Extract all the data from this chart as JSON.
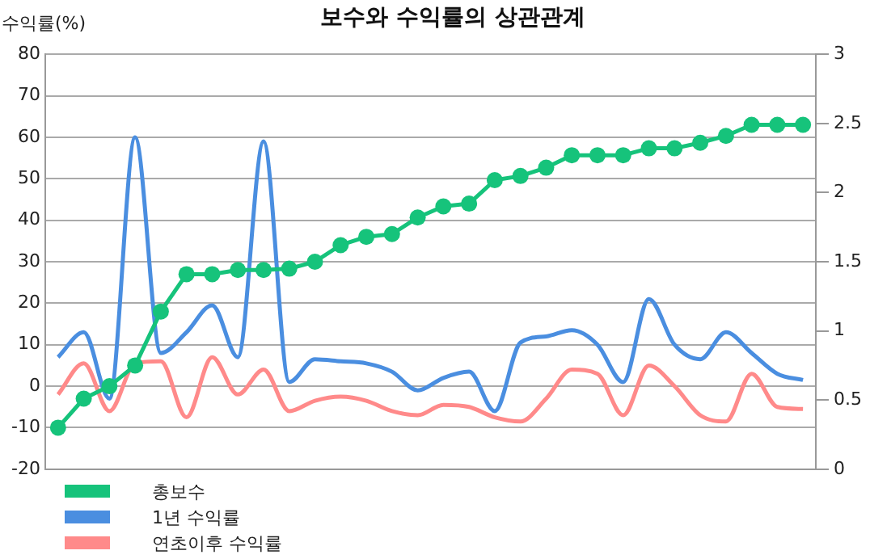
{
  "chart_data": {
    "type": "line",
    "title": "보수와 수익률의 상관관계",
    "ylabel": "수익률(%)",
    "categories": [
      null,
      null,
      null,
      null,
      null,
      null,
      null,
      null,
      null,
      null,
      null,
      null,
      null,
      null,
      null,
      null,
      null,
      null,
      null,
      null,
      null,
      null,
      null,
      null,
      null,
      null,
      null,
      null,
      null,
      null
    ],
    "series": [
      {
        "name": "총보수",
        "color": "#16c37b",
        "axis": "y2",
        "marker": "circle",
        "values": [
          0.3,
          0.51,
          0.6,
          0.75,
          1.14,
          1.41,
          1.41,
          1.44,
          1.44,
          1.45,
          1.5,
          1.62,
          1.68,
          1.7,
          1.82,
          1.9,
          1.92,
          2.09,
          2.12,
          2.18,
          2.27,
          2.27,
          2.27,
          2.32,
          2.32,
          2.36,
          2.41,
          2.49,
          2.49,
          2.49
        ]
      },
      {
        "name": "1년 수익률",
        "color": "#4a8ee0",
        "marker": "none",
        "values": [
          7,
          13,
          -3,
          60,
          8,
          13,
          19.5,
          7,
          59,
          1,
          6.5,
          6,
          5.5,
          3.5,
          -1,
          2,
          3.5,
          -6,
          10.5,
          12,
          13.5,
          10,
          1,
          21,
          10,
          6.5,
          13,
          8,
          3,
          1.5
        ]
      },
      {
        "name": "연초이후 수익률",
        "color": "#ff8a8a",
        "marker": "none",
        "values": [
          -2,
          5.5,
          -6,
          5.5,
          6,
          -7.5,
          7,
          -2,
          4,
          -6,
          -3.5,
          -2.5,
          -3.5,
          -6,
          -7,
          -4.5,
          -5,
          -7.5,
          -8.5,
          -3,
          4,
          3,
          -7,
          5,
          0,
          -7,
          -8.5,
          3,
          -5,
          -5.5
        ]
      }
    ],
    "ylim": [
      -20,
      80
    ],
    "yticks": [
      -20,
      -10,
      0,
      10,
      20,
      30,
      40,
      50,
      60,
      70,
      80
    ],
    "y2lim": [
      0,
      3
    ],
    "y2ticks": [
      0,
      0.5,
      1,
      1.5,
      2,
      2.5,
      3
    ],
    "grid": "y",
    "legend": "bottom left"
  }
}
